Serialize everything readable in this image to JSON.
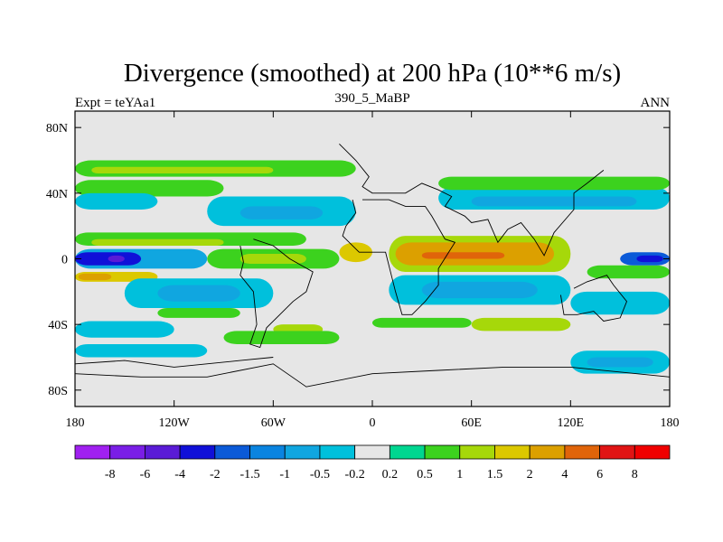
{
  "chart_data": {
    "type": "heatmap",
    "title": "Divergence (smoothed) at 200 hPa (10**6 m/s)",
    "left_label": "Expt = teYAa1",
    "center_label": "390_5_MaBP",
    "right_label": "ANN",
    "x_ticks": [
      "180",
      "120W",
      "60W",
      "0",
      "60E",
      "120E",
      "180"
    ],
    "y_ticks": [
      "80N",
      "40N",
      "0",
      "40S",
      "80S"
    ],
    "x_range": [
      -180,
      180
    ],
    "y_range": [
      -90,
      90
    ],
    "x_tick_values": [
      -180,
      -120,
      -60,
      0,
      60,
      120,
      180
    ],
    "y_tick_values": [
      80,
      40,
      0,
      -40,
      -80
    ],
    "colorbar_labels": [
      "-8",
      "-6",
      "-4",
      "-2",
      "-1.5",
      "-1",
      "-0.5",
      "-0.2",
      "0.2",
      "0.5",
      "1",
      "1.5",
      "2",
      "4",
      "6",
      "8"
    ],
    "colorbar_colors": [
      "#a020f0",
      "#7a1ee6",
      "#5a1bd6",
      "#1010d8",
      "#0b5ad8",
      "#0a84e0",
      "#10a6e0",
      "#00c0dc",
      "#e6e6e6",
      "#00d690",
      "#3cd21e",
      "#a6d80a",
      "#dcc800",
      "#dca000",
      "#e0640a",
      "#e01414",
      "#f00000"
    ],
    "zero_band_color": "#e6e6e6",
    "contour_bands": [
      {
        "lat_n": 60,
        "lat_s": 50,
        "lon_w": -180,
        "lon_e": -10,
        "level": 0.5
      },
      {
        "lat_n": 56,
        "lat_s": 52,
        "lon_w": -170,
        "lon_e": -60,
        "level": 1
      },
      {
        "lat_n": 48,
        "lat_s": 38,
        "lon_w": -180,
        "lon_e": -90,
        "level": 0.5
      },
      {
        "lat_n": 40,
        "lat_s": 30,
        "lon_w": -180,
        "lon_e": -130,
        "level": -0.5
      },
      {
        "lat_n": 38,
        "lat_s": 20,
        "lon_w": -100,
        "lon_e": -10,
        "level": -0.5
      },
      {
        "lat_n": 32,
        "lat_s": 24,
        "lon_w": -80,
        "lon_e": -30,
        "level": -1
      },
      {
        "lat_n": 44,
        "lat_s": 30,
        "lon_w": 40,
        "lon_e": 180,
        "level": -0.5
      },
      {
        "lat_n": 38,
        "lat_s": 32,
        "lon_w": 60,
        "lon_e": 160,
        "level": -1
      },
      {
        "lat_n": 50,
        "lat_s": 42,
        "lon_w": 40,
        "lon_e": 180,
        "level": 0.5
      },
      {
        "lat_n": 16,
        "lat_s": 8,
        "lon_w": -180,
        "lon_e": -40,
        "level": 0.5
      },
      {
        "lat_n": 12,
        "lat_s": 8,
        "lon_w": -170,
        "lon_e": -90,
        "level": 1
      },
      {
        "lat_n": 6,
        "lat_s": -6,
        "lon_w": -180,
        "lon_e": -100,
        "level": -1
      },
      {
        "lat_n": 4,
        "lat_s": -4,
        "lon_w": -180,
        "lon_e": -140,
        "level": -4
      },
      {
        "lat_n": 2,
        "lat_s": -2,
        "lon_w": -160,
        "lon_e": -150,
        "level": -6
      },
      {
        "lat_n": 6,
        "lat_s": -6,
        "lon_w": -100,
        "lon_e": -20,
        "level": 0.5
      },
      {
        "lat_n": 3,
        "lat_s": -3,
        "lon_w": -80,
        "lon_e": -40,
        "level": 1
      },
      {
        "lat_n": -8,
        "lat_s": -14,
        "lon_w": -180,
        "lon_e": -130,
        "level": 1.5
      },
      {
        "lat_n": -9,
        "lat_s": -13,
        "lon_w": -178,
        "lon_e": -158,
        "level": 2
      },
      {
        "lat_n": -12,
        "lat_s": -30,
        "lon_w": -150,
        "lon_e": -60,
        "level": -0.5
      },
      {
        "lat_n": -16,
        "lat_s": -26,
        "lon_w": -130,
        "lon_e": -80,
        "level": -1
      },
      {
        "lat_n": 14,
        "lat_s": -8,
        "lon_w": 10,
        "lon_e": 120,
        "level": 1
      },
      {
        "lat_n": 10,
        "lat_s": -4,
        "lon_w": 14,
        "lon_e": 110,
        "level": 2
      },
      {
        "lat_n": 4,
        "lat_s": 0,
        "lon_w": 30,
        "lon_e": 80,
        "level": 4
      },
      {
        "lat_n": 10,
        "lat_s": -2,
        "lon_w": -20,
        "lon_e": 0,
        "level": 1.5
      },
      {
        "lat_n": -10,
        "lat_s": -28,
        "lon_w": 10,
        "lon_e": 120,
        "level": -0.5
      },
      {
        "lat_n": -14,
        "lat_s": -24,
        "lon_w": 30,
        "lon_e": 100,
        "level": -1
      },
      {
        "lat_n": -4,
        "lat_s": -12,
        "lon_w": 130,
        "lon_e": 180,
        "level": 0.5
      },
      {
        "lat_n": 4,
        "lat_s": -4,
        "lon_w": 150,
        "lon_e": 180,
        "level": -2
      },
      {
        "lat_n": 2,
        "lat_s": -2,
        "lon_w": 160,
        "lon_e": 176,
        "level": -4
      },
      {
        "lat_n": -20,
        "lat_s": -34,
        "lon_w": 120,
        "lon_e": 180,
        "level": -0.5
      },
      {
        "lat_n": -30,
        "lat_s": -36,
        "lon_w": -130,
        "lon_e": -80,
        "level": 0.5
      },
      {
        "lat_n": -40,
        "lat_s": -46,
        "lon_w": -60,
        "lon_e": -30,
        "level": 1
      },
      {
        "lat_n": -36,
        "lat_s": -44,
        "lon_w": 60,
        "lon_e": 120,
        "level": 1
      },
      {
        "lat_n": -36,
        "lat_s": -42,
        "lon_w": 0,
        "lon_e": 60,
        "level": 0.5
      },
      {
        "lat_n": -38,
        "lat_s": -48,
        "lon_w": -180,
        "lon_e": -120,
        "level": -0.5
      },
      {
        "lat_n": -44,
        "lat_s": -52,
        "lon_w": -90,
        "lon_e": -20,
        "level": 0.5
      },
      {
        "lat_n": -56,
        "lat_s": -70,
        "lon_w": 120,
        "lon_e": 180,
        "level": -0.5
      },
      {
        "lat_n": -60,
        "lat_s": -66,
        "lon_w": 130,
        "lon_e": 170,
        "level": -1
      },
      {
        "lat_n": -52,
        "lat_s": -60,
        "lon_w": -180,
        "lon_e": -100,
        "level": -0.5
      }
    ],
    "coastlines": [
      [
        [
          -12,
          36
        ],
        [
          -10,
          28
        ],
        [
          -16,
          20
        ],
        [
          -18,
          14
        ],
        [
          -8,
          4
        ],
        [
          8,
          4
        ],
        [
          10,
          -4
        ],
        [
          14,
          -20
        ],
        [
          18,
          -34
        ],
        [
          24,
          -34
        ],
        [
          32,
          -26
        ],
        [
          40,
          -16
        ],
        [
          40,
          -6
        ],
        [
          50,
          10
        ],
        [
          44,
          12
        ],
        [
          36,
          26
        ],
        [
          32,
          32
        ],
        [
          20,
          32
        ],
        [
          10,
          36
        ],
        [
          -6,
          36
        ]
      ],
      [
        [
          -20,
          70
        ],
        [
          -10,
          60
        ],
        [
          -2,
          50
        ],
        [
          -6,
          44
        ],
        [
          0,
          40
        ],
        [
          20,
          40
        ],
        [
          30,
          46
        ],
        [
          40,
          42
        ],
        [
          48,
          38
        ],
        [
          44,
          32
        ],
        [
          56,
          26
        ],
        [
          60,
          22
        ],
        [
          70,
          24
        ],
        [
          76,
          10
        ],
        [
          82,
          18
        ],
        [
          90,
          22
        ],
        [
          98,
          12
        ],
        [
          104,
          2
        ],
        [
          110,
          16
        ],
        [
          122,
          30
        ],
        [
          122,
          40
        ],
        [
          130,
          46
        ],
        [
          140,
          54
        ]
      ],
      [
        [
          -80,
          8
        ],
        [
          -78,
          -2
        ],
        [
          -80,
          -10
        ],
        [
          -72,
          -20
        ],
        [
          -70,
          -40
        ],
        [
          -74,
          -52
        ],
        [
          -68,
          -54
        ],
        [
          -64,
          -42
        ],
        [
          -56,
          -34
        ],
        [
          -48,
          -26
        ],
        [
          -40,
          -20
        ],
        [
          -36,
          -8
        ],
        [
          -50,
          0
        ],
        [
          -60,
          8
        ],
        [
          -72,
          12
        ]
      ],
      [
        [
          114,
          -22
        ],
        [
          116,
          -34
        ],
        [
          124,
          -34
        ],
        [
          134,
          -32
        ],
        [
          140,
          -38
        ],
        [
          150,
          -36
        ],
        [
          154,
          -26
        ],
        [
          146,
          -16
        ],
        [
          142,
          -10
        ],
        [
          136,
          -12
        ],
        [
          130,
          -14
        ],
        [
          122,
          -18
        ]
      ],
      [
        [
          -180,
          -70
        ],
        [
          -140,
          -72
        ],
        [
          -100,
          -72
        ],
        [
          -60,
          -64
        ],
        [
          -40,
          -78
        ],
        [
          0,
          -70
        ],
        [
          40,
          -68
        ],
        [
          80,
          -66
        ],
        [
          120,
          -66
        ],
        [
          160,
          -70
        ],
        [
          180,
          -72
        ]
      ],
      [
        [
          -180,
          -64
        ],
        [
          -150,
          -62
        ],
        [
          -120,
          -66
        ],
        [
          -80,
          -62
        ],
        [
          -60,
          -60
        ]
      ]
    ]
  }
}
